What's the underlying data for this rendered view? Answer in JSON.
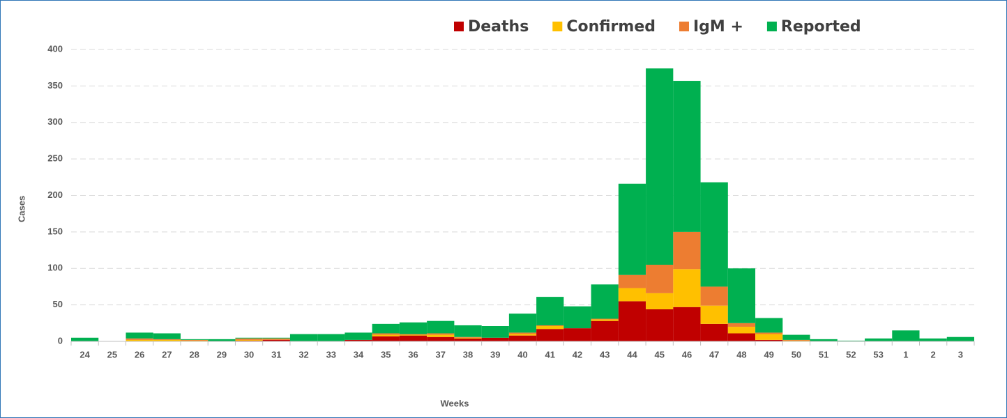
{
  "chart_data": {
    "type": "stacked_bar",
    "x_label": "Weeks",
    "y_label": "Cases",
    "categories": [
      "24",
      "25",
      "26",
      "27",
      "28",
      "29",
      "30",
      "31",
      "32",
      "33",
      "34",
      "35",
      "36",
      "37",
      "38",
      "39",
      "40",
      "41",
      "42",
      "43",
      "44",
      "45",
      "46",
      "47",
      "48",
      "49",
      "50",
      "51",
      "52",
      "53",
      "1",
      "2",
      "3"
    ],
    "series": [
      {
        "name": "Deaths",
        "color": "#c00000",
        "values": [
          0,
          0,
          0,
          0,
          0,
          0,
          1,
          2,
          0,
          0,
          2,
          7,
          8,
          6,
          4,
          5,
          8,
          17,
          18,
          28,
          55,
          44,
          47,
          24,
          11,
          2,
          0,
          0,
          0,
          0,
          0,
          0,
          0
        ]
      },
      {
        "name": "Confirmed",
        "color": "#ffc000",
        "values": [
          0,
          0,
          2,
          2,
          1,
          0,
          1,
          0,
          0,
          0,
          0,
          2,
          1,
          3,
          1,
          0,
          2,
          4,
          0,
          2,
          18,
          22,
          52,
          25,
          9,
          8,
          1,
          0,
          0,
          0,
          0,
          0,
          0
        ]
      },
      {
        "name": "IgM +",
        "color": "#ed7d31",
        "values": [
          0,
          0,
          2,
          1,
          1,
          0,
          2,
          2,
          0,
          0,
          0,
          2,
          1,
          2,
          1,
          0,
          2,
          1,
          0,
          1,
          18,
          39,
          51,
          26,
          5,
          2,
          1,
          0,
          0,
          0,
          0,
          0,
          0
        ]
      },
      {
        "name": "Reported",
        "color": "#00b050",
        "values": [
          5,
          0,
          8,
          8,
          1,
          3,
          1,
          1,
          10,
          10,
          10,
          13,
          16,
          17,
          16,
          16,
          26,
          39,
          30,
          47,
          125,
          269,
          207,
          143,
          75,
          20,
          7,
          3,
          1,
          4,
          15,
          4,
          6
        ]
      }
    ],
    "ylim": [
      0,
      400
    ],
    "yticks": [
      0,
      50,
      100,
      150,
      200,
      250,
      300,
      350,
      400
    ],
    "grid": true,
    "legend": "top"
  }
}
